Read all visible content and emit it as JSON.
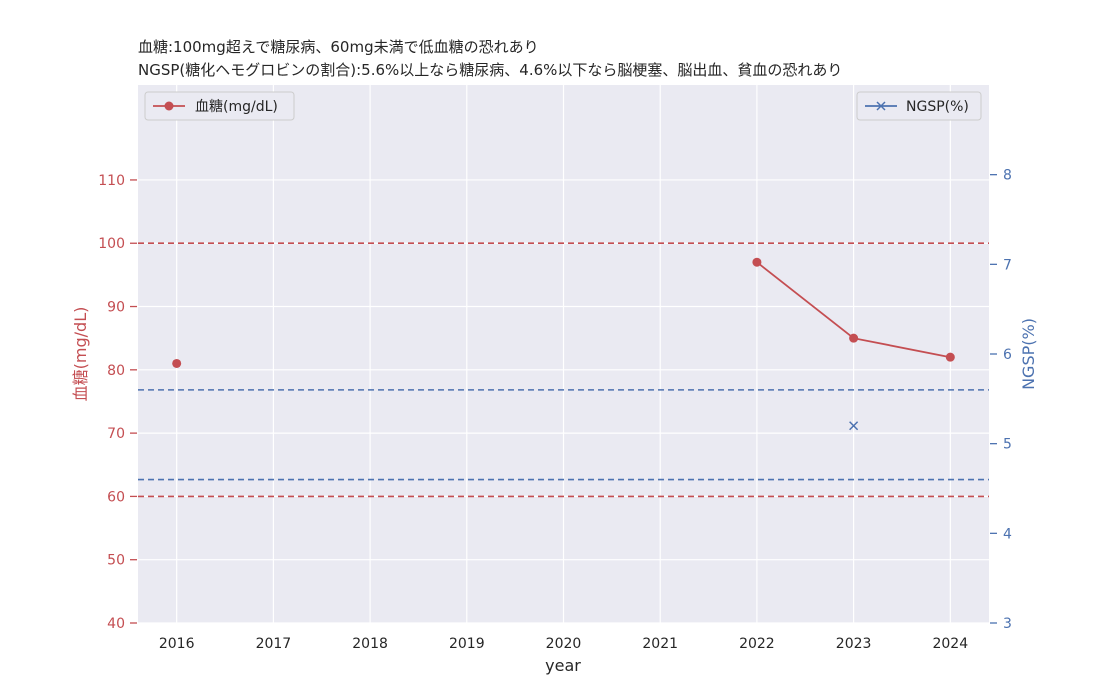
{
  "chart_data": {
    "type": "line",
    "title_lines": [
      "血糖:100mg超えで糖尿病、60mg未満で低血糖の恐れあり",
      "NGSP(糖化ヘモグロビンの割合):5.6%以上なら糖尿病、4.6%以下なら脳梗塞、脳出血、貧血の恐れあり"
    ],
    "xlabel": "year",
    "x_ticks": [
      "2016",
      "2017",
      "2018",
      "2019",
      "2020",
      "2021",
      "2022",
      "2023",
      "2024"
    ],
    "xlim": [
      2015.6,
      2024.4
    ],
    "left_axis": {
      "label": "血糖(mg/dL)",
      "color": "#c44e52",
      "ylim": [
        40,
        125
      ],
      "ticks": [
        "40",
        "50",
        "60",
        "70",
        "80",
        "90",
        "100",
        "110"
      ],
      "reference_lines": [
        100,
        60
      ]
    },
    "right_axis": {
      "label": "NGSP(%)",
      "color": "#4c72b0",
      "ylim": [
        3,
        9
      ],
      "ticks": [
        "3",
        "4",
        "5",
        "6",
        "7",
        "8"
      ],
      "reference_lines": [
        5.6,
        4.6
      ]
    },
    "series": [
      {
        "name": "血糖(mg/dL)",
        "axis": "left",
        "marker": "circle",
        "color": "#c44e52",
        "points": [
          {
            "x": 2016,
            "y": 81
          },
          {
            "x": 2022,
            "y": 97
          },
          {
            "x": 2023,
            "y": 85
          },
          {
            "x": 2024,
            "y": 82
          }
        ],
        "connected_from": 2022
      },
      {
        "name": "NGSP(%)",
        "axis": "right",
        "marker": "x",
        "color": "#4c72b0",
        "points": [
          {
            "x": 2023,
            "y": 5.2
          }
        ]
      }
    ],
    "grid": true,
    "legend_left_placement": "top-left",
    "legend_right_placement": "top-right"
  }
}
